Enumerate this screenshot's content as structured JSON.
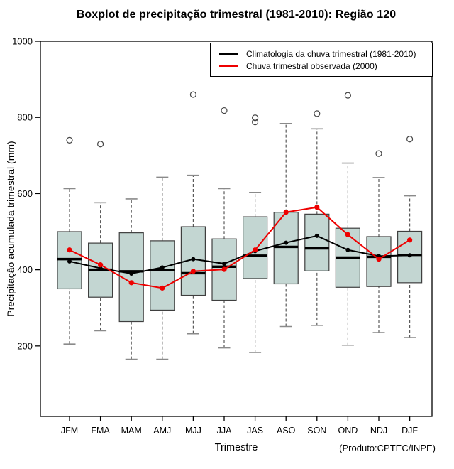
{
  "title": "Boxplot de precipitação trimestral (1981-2010): Região 120",
  "footnote": "(Produto:CPTEC/INPE)",
  "legend": [
    {
      "label": "Climatologia da chuva trimestral (1981-2010)",
      "color": "#000000"
    },
    {
      "label": "Chuva trimestral observada (2000)",
      "color": "#ee0000"
    }
  ],
  "colors": {
    "box_fill": "#c3d6d2",
    "box_border": "#3f3f3f",
    "median": "#000000",
    "whisker": "#5a5a5a",
    "staple": "#8a8a8a",
    "outlier": "#444444",
    "climatology": "#000000",
    "observed": "#ee0000",
    "frame": "#000000"
  },
  "chart_data": {
    "type": "boxplot+line",
    "title": "Boxplot de precipitação trimestral (1981-2010): Região 120",
    "xlabel": "Trimestre",
    "ylabel": "Precipitação acumulada trimestral (mm)",
    "ylim": [
      0,
      1000
    ],
    "y_ticks": [
      200,
      400,
      600,
      800,
      1000
    ],
    "grid": false,
    "legend_position": "top-right",
    "categories": [
      "JFM",
      "FMA",
      "MAM",
      "AMJ",
      "MJJ",
      "JJA",
      "JAS",
      "ASO",
      "SON",
      "OND",
      "NDJ",
      "DJF"
    ],
    "boxes": [
      {
        "category": "JFM",
        "low": 205,
        "q1": 350,
        "median": 428,
        "q3": 500,
        "high": 613,
        "outliers": [
          740
        ]
      },
      {
        "category": "FMA",
        "low": 240,
        "q1": 328,
        "median": 400,
        "q3": 470,
        "high": 576,
        "outliers": [
          730
        ]
      },
      {
        "category": "MAM",
        "low": 165,
        "q1": 264,
        "median": 396,
        "q3": 497,
        "high": 586,
        "outliers": []
      },
      {
        "category": "AMJ",
        "low": 165,
        "q1": 294,
        "median": 399,
        "q3": 476,
        "high": 643,
        "outliers": []
      },
      {
        "category": "MJJ",
        "low": 232,
        "q1": 333,
        "median": 391,
        "q3": 513,
        "high": 648,
        "outliers": [
          860
        ]
      },
      {
        "category": "JJA",
        "low": 195,
        "q1": 320,
        "median": 408,
        "q3": 481,
        "high": 613,
        "outliers": [
          818
        ]
      },
      {
        "category": "JAS",
        "low": 183,
        "q1": 377,
        "median": 437,
        "q3": 539,
        "high": 603,
        "outliers": [
          788,
          799
        ]
      },
      {
        "category": "ASO",
        "low": 251,
        "q1": 363,
        "median": 460,
        "q3": 551,
        "high": 784,
        "outliers": []
      },
      {
        "category": "SON",
        "low": 254,
        "q1": 397,
        "median": 456,
        "q3": 546,
        "high": 770,
        "outliers": [
          810
        ]
      },
      {
        "category": "OND",
        "low": 202,
        "q1": 354,
        "median": 432,
        "q3": 509,
        "high": 680,
        "outliers": [
          858
        ]
      },
      {
        "category": "NDJ",
        "low": 235,
        "q1": 356,
        "median": 434,
        "q3": 487,
        "high": 642,
        "outliers": [
          705
        ]
      },
      {
        "category": "DJF",
        "low": 222,
        "q1": 366,
        "median": 439,
        "q3": 501,
        "high": 594,
        "outliers": [
          743
        ]
      }
    ],
    "series": [
      {
        "name": "Climatologia da chuva trimestral (1981-2010)",
        "color": "#000000",
        "values": [
          422,
          404,
          390,
          406,
          428,
          416,
          449,
          471,
          489,
          452,
          436,
          438
        ]
      },
      {
        "name": "Chuva trimestral observada (2000)",
        "color": "#ee0000",
        "values": [
          452,
          413,
          366,
          352,
          396,
          401,
          452,
          551,
          564,
          492,
          428,
          478
        ]
      }
    ]
  }
}
